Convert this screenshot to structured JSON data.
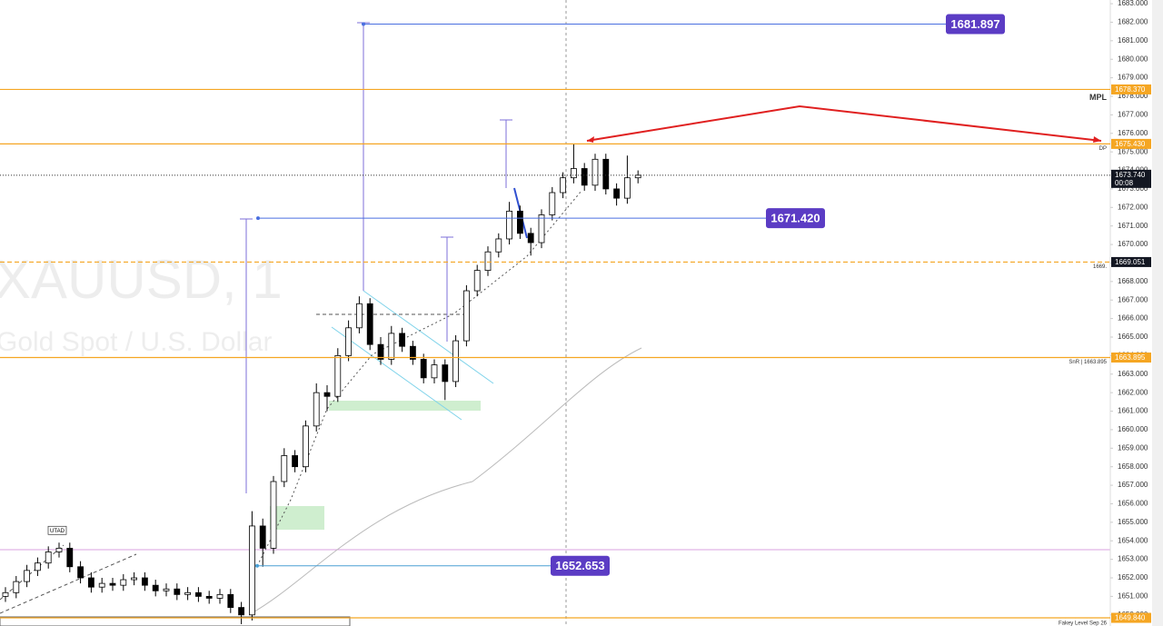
{
  "chart_data": {
    "type": "candlestick",
    "title": "XAUUSD, 1",
    "subtitle": "Gold Spot / U.S. Dollar",
    "up_color": "#ffffff",
    "down_color": "#000000",
    "open": [
      1651.0,
      1651.2,
      1651.8,
      1652.4,
      1652.8,
      1653.4,
      1653.6,
      1652.6,
      1652.0,
      1651.5,
      1651.7,
      1651.6,
      1651.9,
      1652.0,
      1651.6,
      1651.3,
      1651.4,
      1651.1,
      1651.2,
      1651.0,
      1650.9,
      1651.1,
      1650.4,
      1650.0,
      1654.8,
      1653.6,
      1657.2,
      1658.6,
      1658.0,
      1660.2,
      1662.0,
      1661.8,
      1664.0,
      1665.5,
      1666.8,
      1664.6,
      1663.8,
      1665.2,
      1664.5,
      1663.8,
      1662.8,
      1663.5,
      1662.6,
      1664.8,
      1667.5,
      1668.6,
      1669.6,
      1670.3,
      1671.8,
      1670.6,
      1670.1,
      1671.6,
      1672.8,
      1673.6,
      1674.1,
      1673.2,
      1674.6,
      1673.0,
      1672.5,
      1673.6
    ],
    "high": [
      1651.5,
      1652.1,
      1652.7,
      1653.1,
      1653.7,
      1653.9,
      1653.9,
      1652.9,
      1652.3,
      1652.0,
      1652.0,
      1652.2,
      1652.3,
      1652.3,
      1651.9,
      1651.7,
      1651.7,
      1651.5,
      1651.5,
      1651.3,
      1651.4,
      1651.4,
      1650.7,
      1655.6,
      1655.2,
      1657.5,
      1659.0,
      1658.9,
      1660.5,
      1662.5,
      1662.4,
      1664.4,
      1665.9,
      1667.2,
      1667.1,
      1665.0,
      1665.6,
      1665.5,
      1664.8,
      1664.1,
      1663.8,
      1663.8,
      1665.1,
      1667.8,
      1668.9,
      1669.9,
      1670.6,
      1672.3,
      1672.1,
      1670.9,
      1671.9,
      1673.1,
      1673.9,
      1675.4,
      1674.4,
      1674.9,
      1674.9,
      1673.3,
      1674.8,
      1674.0
    ],
    "low": [
      1650.7,
      1650.9,
      1651.5,
      1652.1,
      1652.5,
      1653.1,
      1652.3,
      1651.7,
      1651.2,
      1651.2,
      1651.3,
      1651.3,
      1651.6,
      1651.3,
      1651.0,
      1651.0,
      1650.8,
      1650.8,
      1650.7,
      1650.6,
      1650.6,
      1650.1,
      1649.5,
      1649.7,
      1652.6,
      1653.3,
      1656.9,
      1657.7,
      1657.7,
      1659.9,
      1661.0,
      1661.5,
      1663.7,
      1665.2,
      1664.3,
      1663.5,
      1663.5,
      1664.2,
      1663.5,
      1662.5,
      1662.5,
      1661.6,
      1662.3,
      1664.5,
      1667.2,
      1668.3,
      1669.3,
      1670.0,
      1670.3,
      1669.4,
      1669.8,
      1671.3,
      1672.5,
      1673.3,
      1672.9,
      1672.9,
      1672.7,
      1672.1,
      1672.2,
      1673.3
    ],
    "close": [
      1651.2,
      1651.8,
      1652.4,
      1652.8,
      1653.4,
      1653.6,
      1652.6,
      1652.0,
      1651.5,
      1651.7,
      1651.6,
      1651.9,
      1652.0,
      1651.6,
      1651.3,
      1651.4,
      1651.1,
      1651.2,
      1651.0,
      1650.9,
      1651.1,
      1650.4,
      1650.0,
      1654.8,
      1653.6,
      1657.2,
      1658.6,
      1658.0,
      1660.2,
      1662.0,
      1661.8,
      1664.0,
      1665.5,
      1666.8,
      1664.6,
      1663.8,
      1665.2,
      1664.5,
      1663.8,
      1662.8,
      1663.5,
      1662.6,
      1664.8,
      1667.5,
      1668.6,
      1669.6,
      1670.3,
      1671.8,
      1670.6,
      1670.1,
      1671.6,
      1672.8,
      1673.6,
      1674.1,
      1673.2,
      1674.6,
      1673.0,
      1672.5,
      1673.6,
      1673.74
    ],
    "ylim": [
      1649.4,
      1683.2
    ],
    "yticks": [
      {
        "value": 1650,
        "label": "1650.000"
      },
      {
        "value": 1651,
        "label": "1651.000"
      },
      {
        "value": 1652,
        "label": "1652.000"
      },
      {
        "value": 1653,
        "label": "1653.000"
      },
      {
        "value": 1654,
        "label": "1654.000"
      },
      {
        "value": 1655,
        "label": "1655.000"
      },
      {
        "value": 1656,
        "label": "1656.000"
      },
      {
        "value": 1657,
        "label": "1657.000"
      },
      {
        "value": 1658,
        "label": "1658.000"
      },
      {
        "value": 1659,
        "label": "1659.000"
      },
      {
        "value": 1660,
        "label": "1660.000"
      },
      {
        "value": 1661,
        "label": "1661.000"
      },
      {
        "value": 1662,
        "label": "1662.000"
      },
      {
        "value": 1663,
        "label": "1663.000"
      },
      {
        "value": 1664,
        "label": "1664.000"
      },
      {
        "value": 1665,
        "label": "1665.000"
      },
      {
        "value": 1666,
        "label": "1666.000"
      },
      {
        "value": 1667,
        "label": "1667.000"
      },
      {
        "value": 1668,
        "label": "1668.000"
      },
      {
        "value": 1669,
        "label": "1669.000"
      },
      {
        "value": 1670,
        "label": "1670.000"
      },
      {
        "value": 1671,
        "label": "1671.000"
      },
      {
        "value": 1672,
        "label": "1672.000"
      },
      {
        "value": 1673,
        "label": "1673.000"
      },
      {
        "value": 1674,
        "label": "1674.000"
      },
      {
        "value": 1675,
        "label": "1675.000"
      },
      {
        "value": 1676,
        "label": "1676.000"
      },
      {
        "value": 1677,
        "label": "1677.000"
      },
      {
        "value": 1678,
        "label": "1678.000"
      },
      {
        "value": 1679,
        "label": "1679.000"
      },
      {
        "value": 1680,
        "label": "1680.000"
      },
      {
        "value": 1681,
        "label": "1681.000"
      },
      {
        "value": 1682,
        "label": "1682.000"
      },
      {
        "value": 1683,
        "label": "1683.000"
      }
    ],
    "levels": [
      {
        "value": 1678.37,
        "label": "1678.370",
        "color": "#f5a623",
        "note": "MPL"
      },
      {
        "value": 1675.43,
        "label": "1675.430",
        "color": "#f5a623",
        "note": "DP"
      },
      {
        "value": 1669.051,
        "label": "1669.051",
        "color": "#f5a623",
        "box_color": "#131722",
        "dashed": true,
        "note": "1669."
      },
      {
        "value": 1663.895,
        "label": "1663.895",
        "color": "#f5a623",
        "note": "SnR | 1663.895"
      },
      {
        "value": 1649.84,
        "label": "1649.840",
        "color": "#f5a623",
        "note": "Fakey Level Sep 26"
      }
    ],
    "last_price": {
      "value": 1673.74,
      "label": "1673.740",
      "countdown": "00:08"
    },
    "measures": [
      {
        "value": 1681.897,
        "label": "1681.897",
        "color": "#4a6fe0"
      },
      {
        "value": 1671.42,
        "label": "1671.420",
        "color": "#4a6fe0"
      },
      {
        "value": 1652.653,
        "label": "1652.653",
        "color": "#4a9fd4"
      }
    ],
    "annotation": "UTAD"
  }
}
